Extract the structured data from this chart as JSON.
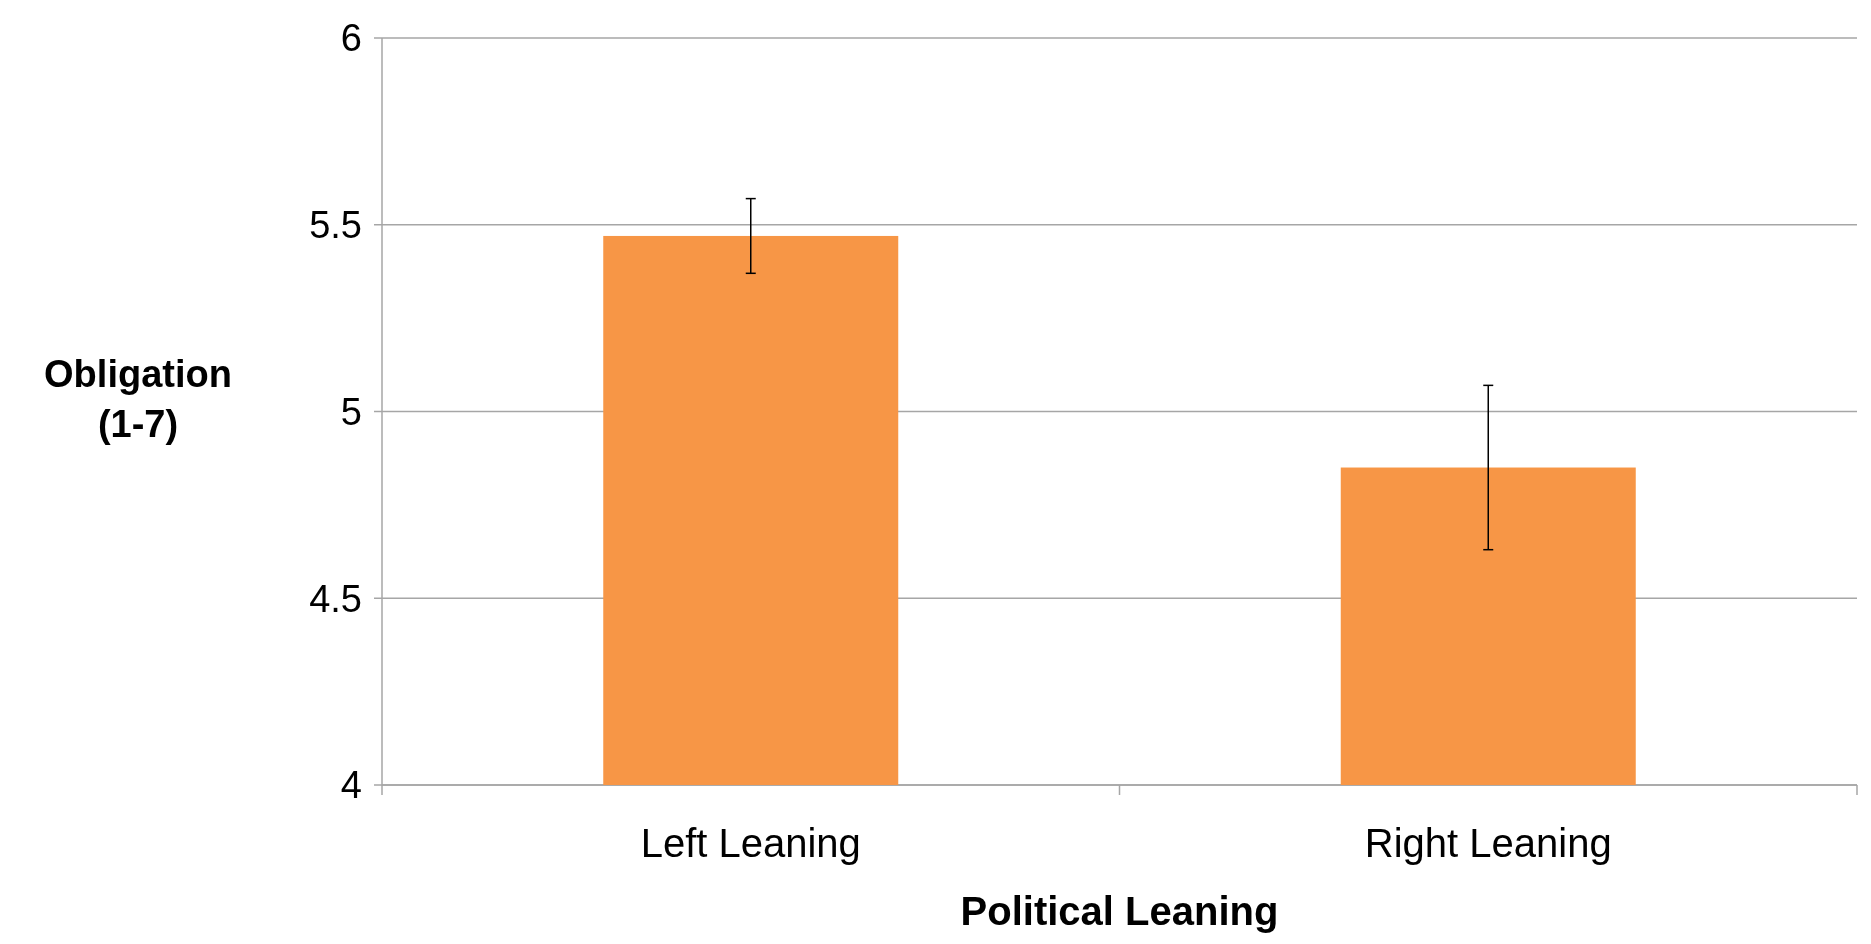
{
  "chart_data": {
    "type": "bar",
    "xlabel": "Political Leaning",
    "ylabel": "Obligation (1-7)",
    "categories": [
      "Left Leaning",
      "Right Leaning"
    ],
    "values": [
      5.47,
      4.85
    ],
    "errors": [
      0.1,
      0.22
    ],
    "color": "#f79646",
    "ylim": [
      4,
      6
    ],
    "yticks": [
      4,
      4.5,
      5,
      5.5,
      6
    ],
    "grid": "y"
  }
}
